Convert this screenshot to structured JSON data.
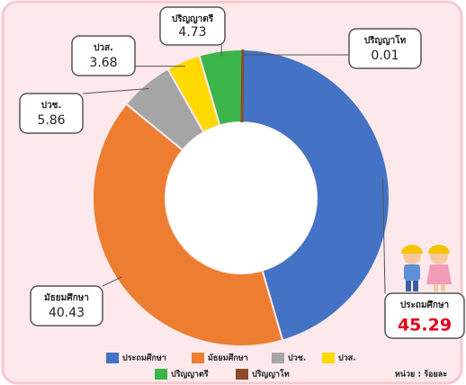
{
  "chart_data": {
    "type": "donut",
    "categories": [
      "ประถมศึกษา",
      "มัธยมศึกษา",
      "ปวช.",
      "ปวส.",
      "ปริญญาตรี",
      "ปริญญาโท"
    ],
    "values": [
      45.29,
      40.43,
      5.86,
      3.68,
      4.73,
      0.01
    ],
    "colors": [
      "#4472c4",
      "#ed7d31",
      "#a5a5a5",
      "#ffd800",
      "#3cb54a",
      "#8b4a2b"
    ],
    "unit_note": "หน่วย : ร้อยละ"
  }
}
